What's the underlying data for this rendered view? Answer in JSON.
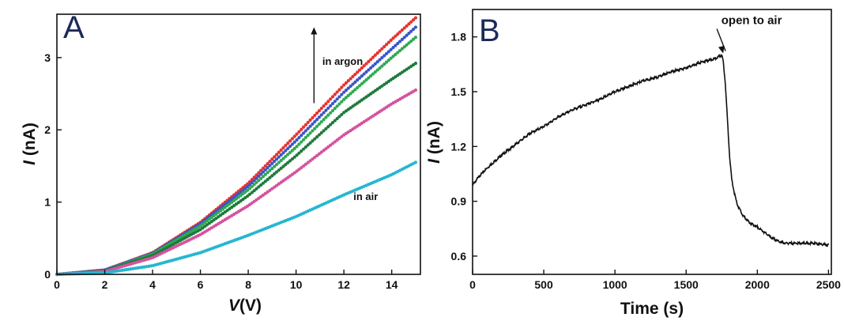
{
  "chart_data": [
    {
      "panel": "A",
      "type": "scatter",
      "xlabel_italic": "V",
      "xlabel_unit": "(V)",
      "ylabel_italic": "I",
      "ylabel_unit": " (nA)",
      "xlim": [
        0,
        15.2
      ],
      "ylim": [
        0,
        3.6
      ],
      "xticks": [
        0,
        2,
        4,
        6,
        8,
        10,
        12,
        14
      ],
      "yticks": [
        0,
        1,
        2,
        3
      ],
      "grid": false,
      "annotations": [
        {
          "text": "in argon",
          "x": 11.1,
          "y": 2.9
        },
        {
          "text": "in air",
          "x": 12.4,
          "y": 1.03
        }
      ],
      "arrow": {
        "x": 10.75,
        "from_y": 2.37,
        "to_y": 3.42
      },
      "series": [
        {
          "color": "#e8322e",
          "x": [
            0,
            2,
            4,
            6,
            8,
            10,
            12,
            14,
            15
          ],
          "values": [
            0,
            0.06,
            0.3,
            0.72,
            1.26,
            1.93,
            2.62,
            3.25,
            3.55
          ]
        },
        {
          "color": "#3a55c8",
          "x": [
            0,
            2,
            4,
            6,
            8,
            10,
            12,
            14,
            15
          ],
          "values": [
            0,
            0.06,
            0.29,
            0.7,
            1.22,
            1.85,
            2.52,
            3.12,
            3.42
          ]
        },
        {
          "color": "#2eaa52",
          "x": [
            0,
            2,
            4,
            6,
            8,
            10,
            12,
            14,
            15
          ],
          "values": [
            0,
            0.05,
            0.28,
            0.67,
            1.17,
            1.76,
            2.42,
            3.0,
            3.28
          ]
        },
        {
          "color": "#1e7a3c",
          "x": [
            0,
            2,
            4,
            6,
            8,
            10,
            12,
            14,
            15
          ],
          "values": [
            0,
            0.05,
            0.26,
            0.62,
            1.09,
            1.64,
            2.24,
            2.7,
            2.92
          ]
        },
        {
          "color": "#d4529f",
          "x": [
            0,
            2,
            4,
            6,
            8,
            10,
            12,
            14,
            15
          ],
          "values": [
            0,
            0.04,
            0.23,
            0.55,
            0.95,
            1.42,
            1.93,
            2.36,
            2.55
          ]
        },
        {
          "color": "#25b6d0",
          "x": [
            0,
            2,
            4,
            6,
            8,
            10,
            12,
            14,
            15
          ],
          "values": [
            0,
            0.02,
            0.12,
            0.3,
            0.54,
            0.8,
            1.1,
            1.38,
            1.55
          ]
        }
      ]
    },
    {
      "panel": "B",
      "type": "line",
      "xlabel": "Time (s)",
      "ylabel_italic": "I",
      "ylabel_unit": " (nA)",
      "xlim": [
        0,
        2520
      ],
      "ylim": [
        0.5,
        1.95
      ],
      "xticks": [
        0,
        500,
        1000,
        1500,
        2000,
        2500
      ],
      "yticks": [
        0.6,
        0.9,
        1.2,
        1.5,
        1.8
      ],
      "ytick_labels": [
        "0.6",
        "0.9",
        "1.2",
        "1.5",
        "1.8"
      ],
      "grid": false,
      "annotations": [
        {
          "text": "open to air",
          "x": 1960,
          "y": 1.87,
          "arrow_to": {
            "x": 1760,
            "y": 1.71
          }
        }
      ],
      "series": [
        {
          "color": "#111111",
          "x": [
            0,
            50,
            100,
            200,
            300,
            400,
            500,
            600,
            700,
            800,
            900,
            1000,
            1100,
            1200,
            1300,
            1400,
            1500,
            1600,
            1700,
            1750,
            1760,
            1775,
            1790,
            1805,
            1820,
            1840,
            1860,
            1900,
            1950,
            2000,
            2050,
            2100,
            2150,
            2200,
            2300,
            2400,
            2500
          ],
          "values": [
            0.99,
            1.04,
            1.08,
            1.15,
            1.21,
            1.27,
            1.31,
            1.36,
            1.4,
            1.43,
            1.46,
            1.5,
            1.53,
            1.56,
            1.58,
            1.61,
            1.63,
            1.66,
            1.68,
            1.7,
            1.67,
            1.55,
            1.35,
            1.15,
            1.02,
            0.94,
            0.88,
            0.82,
            0.78,
            0.76,
            0.73,
            0.7,
            0.68,
            0.67,
            0.67,
            0.67,
            0.66
          ]
        }
      ]
    }
  ]
}
